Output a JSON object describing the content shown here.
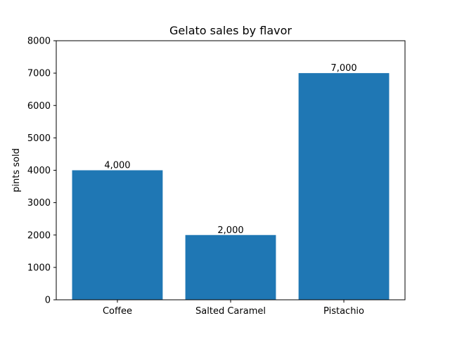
{
  "chart_data": {
    "type": "bar",
    "title": "Gelato sales by flavor",
    "xlabel": "",
    "ylabel": "pints sold",
    "categories": [
      "Coffee",
      "Salted Caramel",
      "Pistachio"
    ],
    "values": [
      4000,
      2000,
      7000
    ],
    "data_labels": [
      "4,000",
      "2,000",
      "7,000"
    ],
    "ylim": [
      0,
      8000
    ],
    "yticks": [
      0,
      1000,
      2000,
      3000,
      4000,
      5000,
      6000,
      7000,
      8000
    ],
    "grid": false,
    "legend": null,
    "bar_color": "#1f77b4"
  }
}
